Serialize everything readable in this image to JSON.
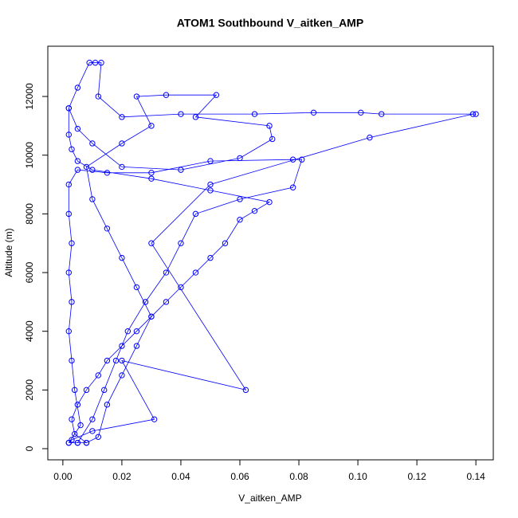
{
  "chart_data": {
    "type": "line",
    "title": "ATOM1 Southbound V_aitken_AMP",
    "xlabel": "V_aitken_AMP",
    "ylabel": "Altitude (m)",
    "color": "#0000ff",
    "markers": true,
    "xlim": [
      -0.0051,
      0.1459
    ],
    "ylim": [
      -380,
      13712
    ],
    "xticks": [
      {
        "value": 0,
        "label": "0.00"
      },
      {
        "value": 0.02,
        "label": "0.02"
      },
      {
        "value": 0.04,
        "label": "0.04"
      },
      {
        "value": 0.06,
        "label": "0.06"
      },
      {
        "value": 0.08,
        "label": "0.08"
      },
      {
        "value": 0.1,
        "label": "0.10"
      },
      {
        "value": 0.12,
        "label": "0.12"
      },
      {
        "value": 0.14,
        "label": "0.14"
      }
    ],
    "yticks": [
      0,
      2000,
      4000,
      6000,
      8000,
      10000,
      12000
    ],
    "x": [
      0.002,
      0.005,
      0.008,
      0.004,
      0.003,
      0.005,
      0.008,
      0.012,
      0.015,
      0.02,
      0.025,
      0.03,
      0.035,
      0.04,
      0.045,
      0.05,
      0.055,
      0.06,
      0.065,
      0.07,
      0.05,
      0.03,
      0.01,
      0.005,
      0.003,
      0.002,
      0.002,
      0.005,
      0.009,
      0.011,
      0.013,
      0.012,
      0.02,
      0.04,
      0.065,
      0.085,
      0.101,
      0.108,
      0.14,
      0.139,
      0.104,
      0.05,
      0.03,
      0.062,
      0.02,
      0.031,
      0.01,
      0.003,
      0.002,
      0.006,
      0.004,
      0.003,
      0.002,
      0.003,
      0.002,
      0.003,
      0.002,
      0.002,
      0.005,
      0.015,
      0.03,
      0.05,
      0.078,
      0.081,
      0.078,
      0.06,
      0.045,
      0.04,
      0.035,
      0.028,
      0.022,
      0.018,
      0.014,
      0.01,
      0.005,
      0.008,
      0.012,
      0.015,
      0.02,
      0.025,
      0.03,
      0.025,
      0.02,
      0.015,
      0.01,
      0.008,
      0.02,
      0.03,
      0.025,
      0.035,
      0.052,
      0.045,
      0.07,
      0.071,
      0.06,
      0.04,
      0.02,
      0.01,
      0.005,
      0.002
    ],
    "values": [
      200,
      200,
      200,
      500,
      1000,
      1500,
      2000,
      2500,
      3000,
      3500,
      4000,
      4500,
      5000,
      5500,
      6000,
      6500,
      7000,
      7800,
      8100,
      8400,
      8800,
      9200,
      9500,
      9800,
      10200,
      10700,
      11600,
      12300,
      13150,
      13150,
      13150,
      12000,
      11300,
      11400,
      11400,
      11450,
      11450,
      11400,
      11400,
      11400,
      10600,
      9000,
      7000,
      2000,
      3000,
      1000,
      600,
      300,
      200,
      800,
      2000,
      3000,
      4000,
      5000,
      6000,
      7000,
      8000,
      9000,
      9500,
      9400,
      9400,
      9800,
      9850,
      9850,
      8900,
      8500,
      8000,
      7000,
      6000,
      5000,
      4000,
      3000,
      2000,
      1000,
      200,
      200,
      400,
      1500,
      2500,
      3500,
      4500,
      5500,
      6500,
      7500,
      8500,
      9600,
      10400,
      11000,
      12000,
      12050,
      12050,
      11300,
      11000,
      10550,
      9900,
      9500,
      9600,
      10400,
      10900,
      11600
    ]
  }
}
